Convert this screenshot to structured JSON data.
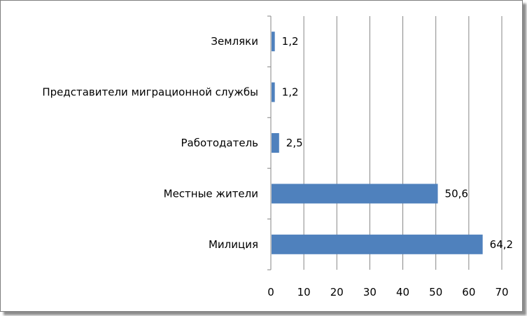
{
  "chart_data": {
    "type": "bar",
    "orientation": "horizontal",
    "title": "",
    "xlabel": "",
    "ylabel": "",
    "categories": [
      "Земляки",
      "Представители миграционной службы",
      "Работодатель",
      "Местные жители",
      "Милиция"
    ],
    "values": [
      1.2,
      1.2,
      2.5,
      50.6,
      64.2
    ],
    "data_labels": [
      "1,2",
      "1,2",
      "2,5",
      "50,6",
      "64,2"
    ],
    "xlim": [
      0,
      70
    ],
    "x_ticks": [
      0,
      10,
      20,
      30,
      40,
      50,
      60,
      70
    ],
    "x_tick_labels": [
      "0",
      "10",
      "20",
      "30",
      "40",
      "50",
      "60",
      "70"
    ],
    "grid": "vertical major gridlines",
    "legend": "none",
    "bar_color": "#4f81bd"
  }
}
